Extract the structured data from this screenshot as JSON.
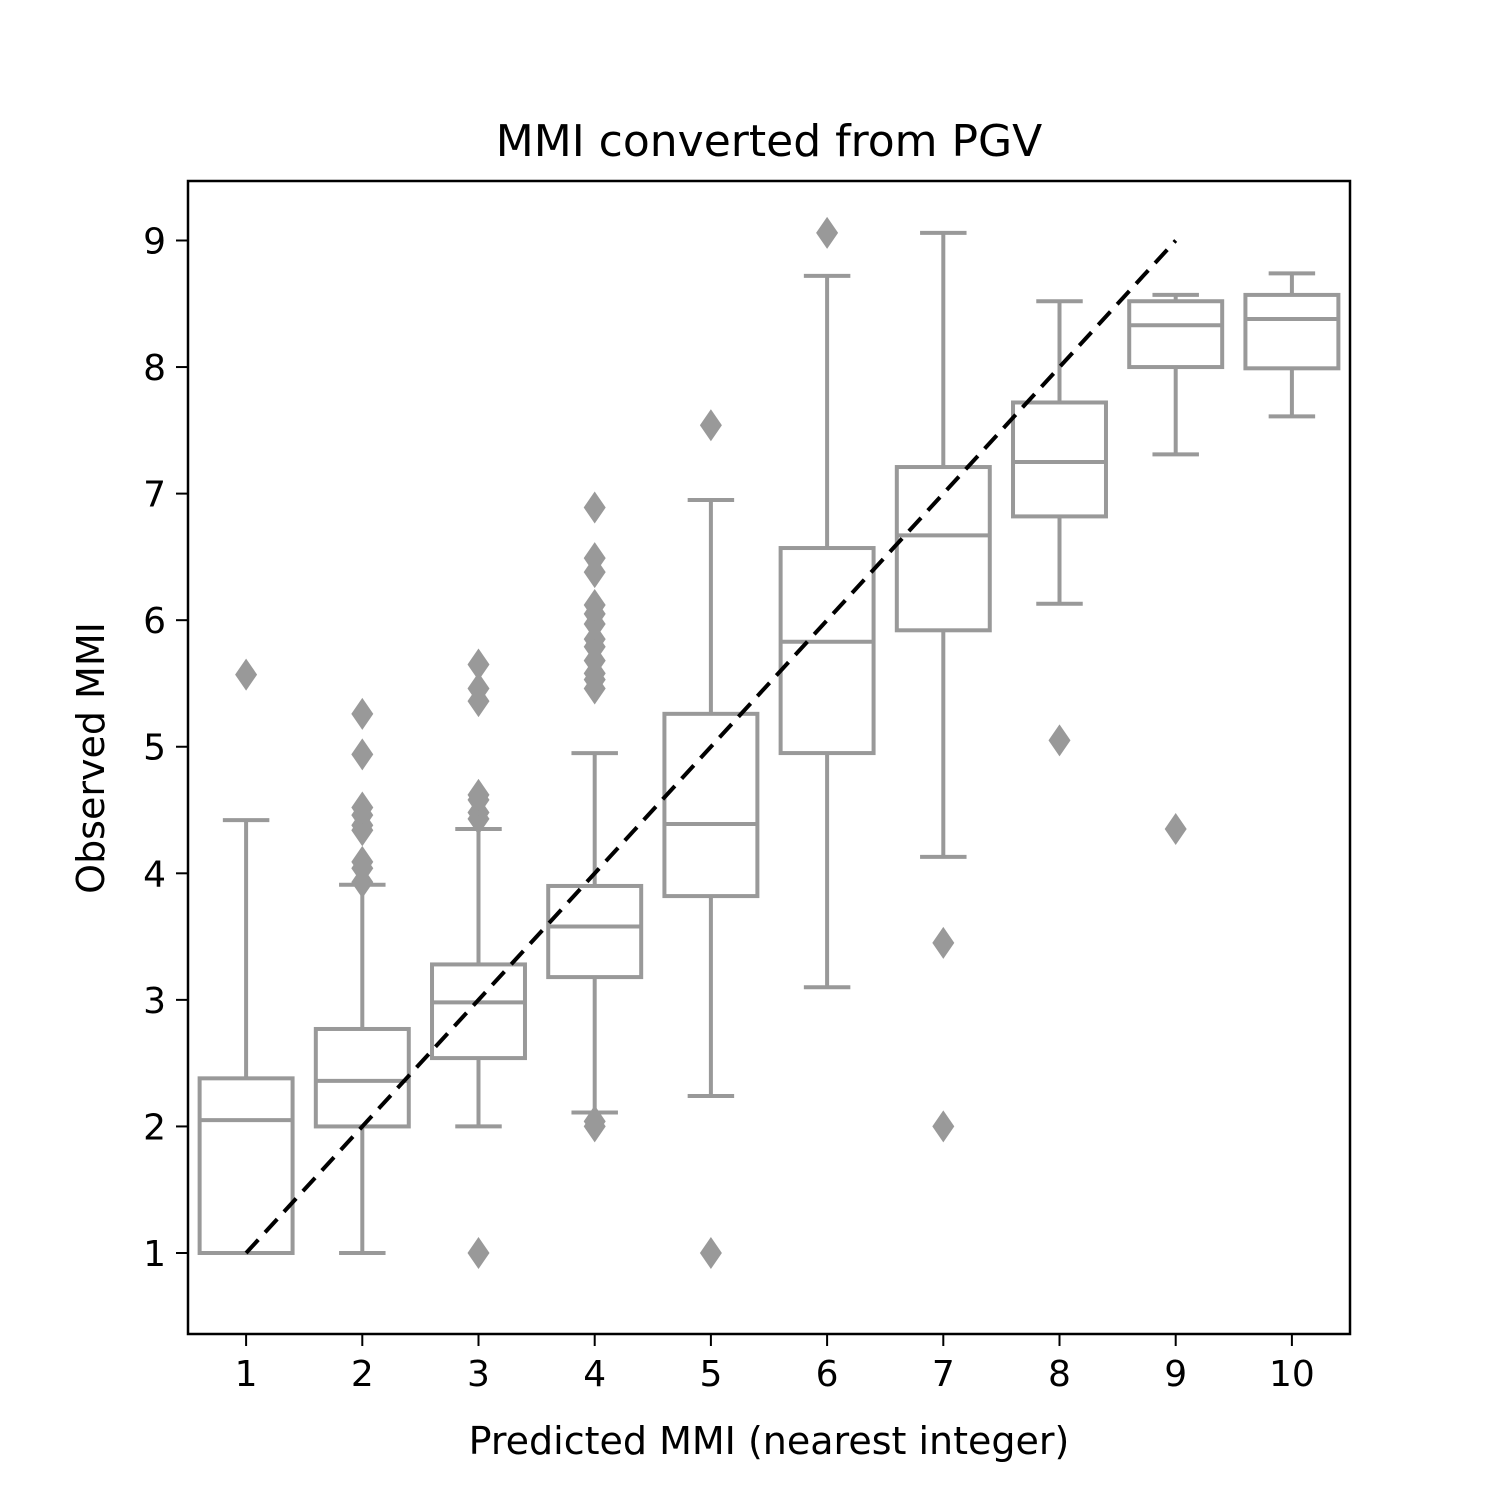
{
  "chart_data": {
    "type": "box",
    "title": "MMI converted from PGV",
    "xlabel": "Predicted MMI (nearest integer)",
    "ylabel": "Observed MMI",
    "categories": [
      "1",
      "2",
      "3",
      "4",
      "5",
      "6",
      "7",
      "8",
      "9",
      "10"
    ],
    "yticks": [
      "1",
      "2",
      "3",
      "4",
      "5",
      "6",
      "7",
      "8",
      "9"
    ],
    "ylim": [
      0.36,
      9.47
    ],
    "xlim": [
      0.5,
      10.5
    ],
    "grid": false,
    "box_color": "#999999",
    "boxes": [
      {
        "x": 1,
        "whisker_low": 1.0,
        "q1": 1.0,
        "median": 2.05,
        "q3": 2.38,
        "whisker_high": 4.42,
        "outliers": [
          5.57
        ]
      },
      {
        "x": 2,
        "whisker_low": 1.0,
        "q1": 2.0,
        "median": 2.36,
        "q3": 2.77,
        "whisker_high": 3.91,
        "outliers": [
          3.93,
          4.04,
          4.09,
          4.34,
          4.38,
          4.46,
          4.52,
          4.94,
          5.26
        ]
      },
      {
        "x": 3,
        "whisker_low": 2.0,
        "q1": 2.54,
        "median": 2.98,
        "q3": 3.28,
        "whisker_high": 4.35,
        "outliers": [
          1.0,
          4.43,
          4.48,
          4.58,
          4.62,
          5.36,
          5.46,
          5.65
        ]
      },
      {
        "x": 4,
        "whisker_low": 2.11,
        "q1": 3.18,
        "median": 3.58,
        "q3": 3.9,
        "whisker_high": 4.95,
        "outliers": [
          2.0,
          2.04,
          5.46,
          5.53,
          5.58,
          5.68,
          5.79,
          5.85,
          5.97,
          6.05,
          6.12,
          6.38,
          6.49,
          6.89
        ]
      },
      {
        "x": 5,
        "whisker_low": 2.24,
        "q1": 3.82,
        "median": 4.39,
        "q3": 5.26,
        "whisker_high": 6.95,
        "outliers": [
          1.0,
          7.54
        ]
      },
      {
        "x": 6,
        "whisker_low": 3.1,
        "q1": 4.95,
        "median": 5.83,
        "q3": 6.57,
        "whisker_high": 8.72,
        "outliers": [
          9.06
        ]
      },
      {
        "x": 7,
        "whisker_low": 4.13,
        "q1": 5.92,
        "median": 6.67,
        "q3": 7.21,
        "whisker_high": 9.06,
        "outliers": [
          2.0,
          3.45
        ]
      },
      {
        "x": 8,
        "whisker_low": 6.13,
        "q1": 6.82,
        "median": 7.25,
        "q3": 7.72,
        "whisker_high": 8.52,
        "outliers": [
          5.05
        ]
      },
      {
        "x": 9,
        "whisker_low": 7.31,
        "q1": 8.0,
        "median": 8.33,
        "q3": 8.52,
        "whisker_high": 8.57,
        "outliers": [
          4.35
        ]
      },
      {
        "x": 10,
        "whisker_low": 7.61,
        "q1": 7.99,
        "median": 8.38,
        "q3": 8.57,
        "whisker_high": 8.74,
        "outliers": []
      }
    ],
    "reference_line": {
      "style": "dashed",
      "color": "#000000",
      "x": [
        1,
        9
      ],
      "y": [
        1,
        9
      ]
    }
  }
}
